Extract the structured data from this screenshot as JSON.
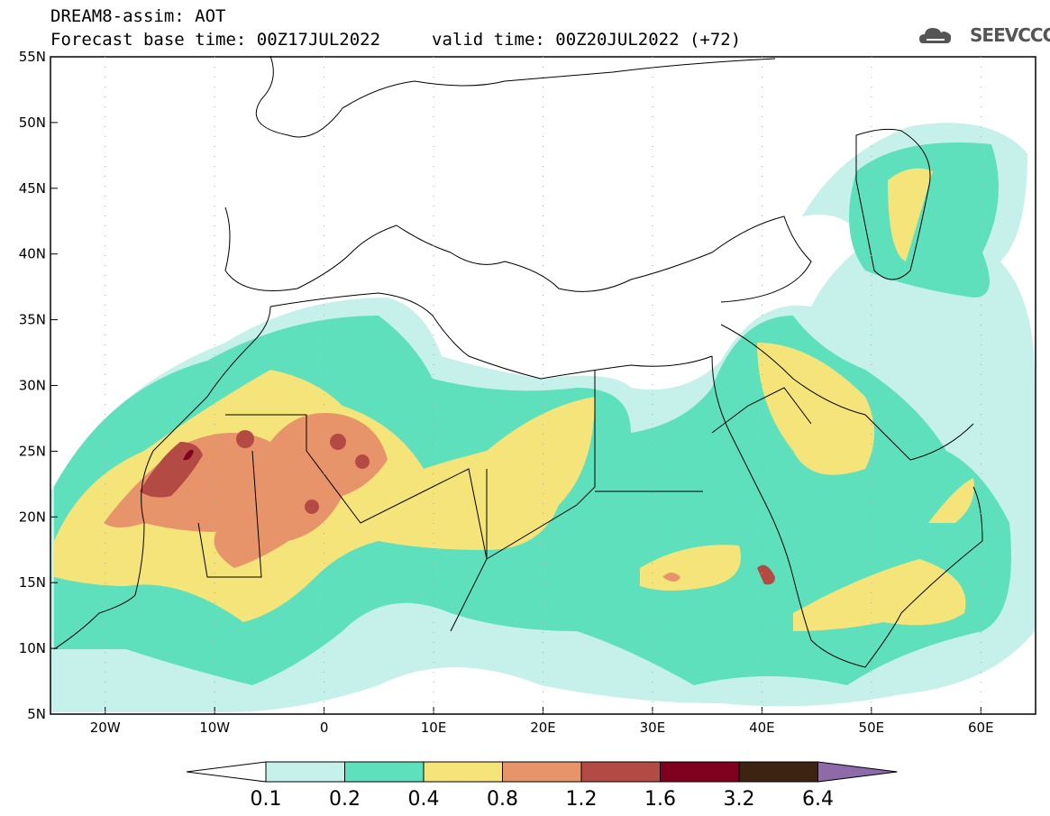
{
  "title": {
    "line1": "DREAM8-assim: AOT",
    "line2": "Forecast base time: 00Z17JUL2022",
    "valid": "valid time: 00Z20JUL2022 (+72)"
  },
  "logo": {
    "text": "SEEVCCC",
    "icon": "cloud-icon"
  },
  "map": {
    "lat_range": [
      5,
      55
    ],
    "lon_range": [
      -25,
      65
    ],
    "lat_labels": [
      "55N",
      "50N",
      "45N",
      "40N",
      "35N",
      "30N",
      "25N",
      "20N",
      "15N",
      "10N",
      "5N"
    ],
    "lon_labels": [
      "20W",
      "10W",
      "0",
      "10E",
      "20E",
      "30E",
      "40E",
      "50E",
      "60E"
    ],
    "lon_label_values": [
      -20,
      -10,
      0,
      10,
      20,
      30,
      40,
      50,
      60
    ],
    "lat_label_values": [
      55,
      50,
      45,
      40,
      35,
      30,
      25,
      20,
      15,
      10,
      5
    ]
  },
  "colorbar": {
    "colors": [
      "#ffffff",
      "#c6f0ea",
      "#5fe0bd",
      "#f5e47a",
      "#e8946a",
      "#b44a44",
      "#800020",
      "#3d2412",
      "#8f6aa8"
    ],
    "labels": [
      "0.1",
      "0.2",
      "0.4",
      "0.8",
      "1.2",
      "1.6",
      "3.2",
      "6.4"
    ]
  }
}
